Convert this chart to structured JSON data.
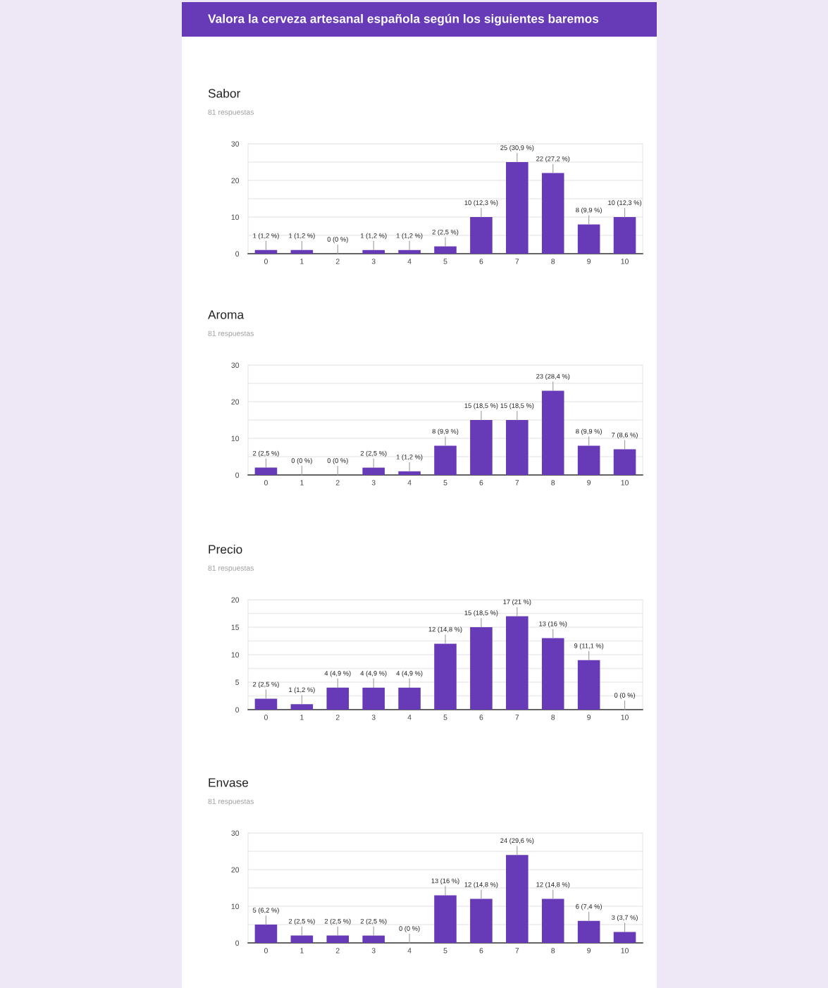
{
  "chart_data": [
    {
      "type": "other",
      "title": "Valora la cerveza artesanal española según los siguientes baremos"
    },
    {
      "type": "bar",
      "title": "Sabor",
      "subtitle": "81 respuestas",
      "categories": [
        "0",
        "1",
        "2",
        "3",
        "4",
        "5",
        "6",
        "7",
        "8",
        "9",
        "10"
      ],
      "values": [
        1,
        1,
        0,
        1,
        1,
        2,
        10,
        25,
        22,
        8,
        10
      ],
      "color": "#673ab7",
      "value_labels": [
        "1 (1,2 %)",
        "1 (1,2 %)",
        "0 (0 %)",
        "1 (1,2 %)",
        "1 (1,2 %)",
        "2 (2,5 %)",
        "10 (12,3 %)",
        "25 (30,9 %)",
        "22 (27,2 %)",
        "8 (9,9 %)",
        "10 (12,3 %)"
      ],
      "ylim": [
        0,
        30
      ],
      "yticks": [
        0,
        {
          "value": 5,
          "label": null
        },
        10,
        {
          "value": 15,
          "label": null
        },
        20,
        {
          "value": 25,
          "label": null
        },
        30
      ],
      "grid": "y"
    },
    {
      "type": "bar",
      "title": "Aroma",
      "subtitle": "81 respuestas",
      "categories": [
        "0",
        "1",
        "2",
        "3",
        "4",
        "5",
        "6",
        "7",
        "8",
        "9",
        "10"
      ],
      "values": [
        2,
        0,
        0,
        2,
        1,
        8,
        15,
        15,
        23,
        8,
        7
      ],
      "color": "#673ab7",
      "value_labels": [
        "2 (2,5 %)",
        "0 (0 %)",
        "0 (0 %)",
        "2 (2,5 %)",
        "1 (1,2 %)",
        "8 (9,9 %)",
        "15 (18,5 %)",
        "15 (18,5 %)",
        "23 (28,4 %)",
        "8 (9,9 %)",
        "7 (8,6 %)"
      ],
      "ylim": [
        0,
        30
      ],
      "yticks": [
        0,
        {
          "value": 5,
          "label": null
        },
        10,
        {
          "value": 15,
          "label": null
        },
        20,
        {
          "value": 25,
          "label": null
        },
        30
      ],
      "grid": "y"
    },
    {
      "type": "bar",
      "title": "Precio",
      "subtitle": "81 respuestas",
      "categories": [
        "0",
        "1",
        "2",
        "3",
        "4",
        "5",
        "6",
        "7",
        "8",
        "9",
        "10"
      ],
      "values": [
        2,
        1,
        4,
        4,
        4,
        12,
        15,
        17,
        13,
        9,
        0
      ],
      "color": "#673ab7",
      "value_labels": [
        "2 (2,5 %)",
        "1 (1,2 %)",
        "4 (4,9 %)",
        "4 (4,9 %)",
        "4 (4,9 %)",
        "12 (14,8 %)",
        "15 (18,5 %)",
        "17 (21 %)",
        "13 (16 %)",
        "9 (11,1 %)",
        "0 (0 %)"
      ],
      "ylim": [
        0,
        20
      ],
      "yticks": [
        0,
        {
          "value": 2.5,
          "label": null
        },
        5,
        {
          "value": 7.5,
          "label": null
        },
        10,
        {
          "value": 12.5,
          "label": null
        },
        15,
        {
          "value": 17.5,
          "label": null
        },
        20
      ],
      "grid": "y"
    },
    {
      "type": "bar",
      "title": "Envase",
      "subtitle": "81 respuestas",
      "categories": [
        "0",
        "1",
        "2",
        "3",
        "4",
        "5",
        "6",
        "7",
        "8",
        "9",
        "10"
      ],
      "values": [
        5,
        2,
        2,
        2,
        0,
        13,
        12,
        24,
        12,
        6,
        3
      ],
      "color": "#673ab7",
      "value_labels": [
        "5 (6,2 %)",
        "2 (2,5 %)",
        "2 (2,5 %)",
        "2 (2,5 %)",
        "0 (0 %)",
        "13 (16 %)",
        "12 (14,8 %)",
        "24 (29,6 %)",
        "12 (14,8 %)",
        "6 (7,4 %)",
        "3 (3,7 %)"
      ],
      "ylim": [
        0,
        30
      ],
      "yticks": [
        0,
        {
          "value": 5,
          "label": null
        },
        10,
        {
          "value": 15,
          "label": null
        },
        20,
        {
          "value": 25,
          "label": null
        },
        30
      ],
      "grid": "y"
    }
  ]
}
